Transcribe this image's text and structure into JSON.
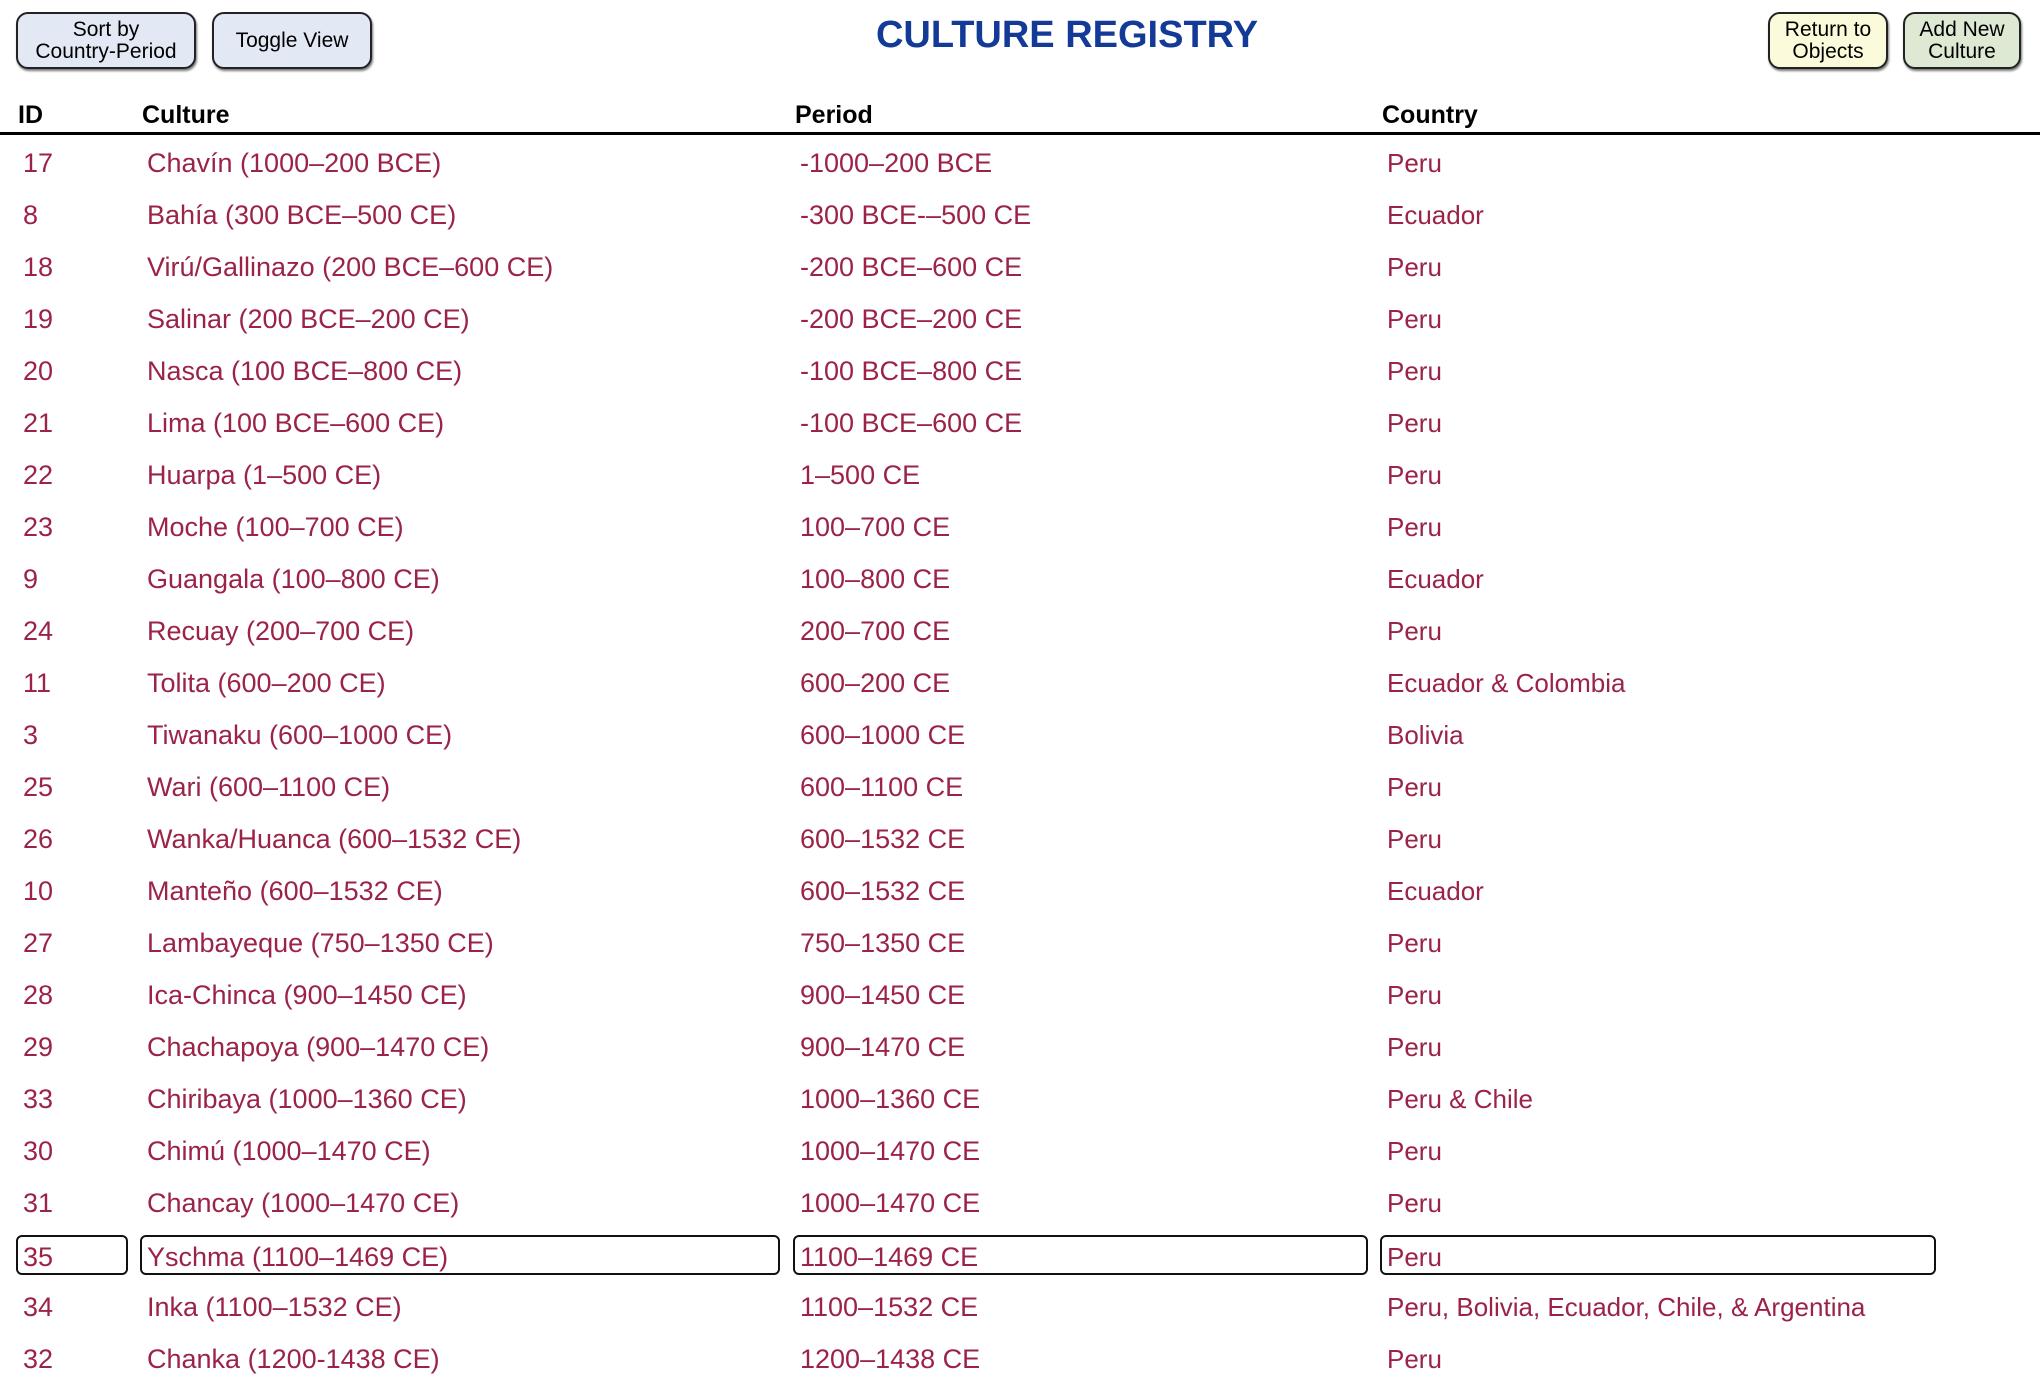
{
  "toolbar": {
    "sort": "Sort by\nCountry-Period",
    "toggle": "Toggle View",
    "return": "Return to\nObjects",
    "add": "Add New\nCulture"
  },
  "title": "CULTURE REGISTRY",
  "columns": {
    "id": "ID",
    "culture": "Culture",
    "period": "Period",
    "country": "Country"
  },
  "colors": {
    "text": "#9b2348",
    "title": "#123a96"
  },
  "selected_id": "35",
  "rows": [
    {
      "id": "17",
      "culture": "Chavín (1000–200 BCE)",
      "period": "-1000–200 BCE",
      "country": "Peru"
    },
    {
      "id": "8",
      "culture": "Bahía (300 BCE–500 CE)",
      "period": "-300 BCE-–500 CE",
      "country": "Ecuador"
    },
    {
      "id": "18",
      "culture": "Virú/Gallinazo (200 BCE–600 CE)",
      "period": "-200 BCE–600 CE",
      "country": "Peru"
    },
    {
      "id": "19",
      "culture": "Salinar (200 BCE–200 CE)",
      "period": "-200 BCE–200 CE",
      "country": "Peru"
    },
    {
      "id": "20",
      "culture": "Nasca (100 BCE–800 CE)",
      "period": "-100 BCE–800 CE",
      "country": "Peru"
    },
    {
      "id": "21",
      "culture": "Lima (100 BCE–600 CE)",
      "period": "-100 BCE–600 CE",
      "country": "Peru"
    },
    {
      "id": "22",
      "culture": "Huarpa (1–500 CE)",
      "period": "1–500 CE",
      "country": "Peru"
    },
    {
      "id": "23",
      "culture": "Moche (100–700 CE)",
      "period": "100–700 CE",
      "country": "Peru"
    },
    {
      "id": "9",
      "culture": "Guangala (100–800 CE)",
      "period": "100–800 CE",
      "country": "Ecuador"
    },
    {
      "id": "24",
      "culture": "Recuay (200–700 CE)",
      "period": "200–700 CE",
      "country": "Peru"
    },
    {
      "id": "11",
      "culture": "Tolita (600–200 CE)",
      "period": "600–200 CE",
      "country": "Ecuador & Colombia"
    },
    {
      "id": "3",
      "culture": "Tiwanaku (600–1000 CE)",
      "period": "600–1000 CE",
      "country": "Bolivia"
    },
    {
      "id": "25",
      "culture": "Wari (600–1100 CE)",
      "period": "600–1100 CE",
      "country": "Peru"
    },
    {
      "id": "26",
      "culture": "Wanka/Huanca (600–1532 CE)",
      "period": "600–1532 CE",
      "country": "Peru"
    },
    {
      "id": "10",
      "culture": "Manteño (600–1532 CE)",
      "period": "600–1532 CE",
      "country": "Ecuador"
    },
    {
      "id": "27",
      "culture": "Lambayeque (750–1350 CE)",
      "period": "750–1350 CE",
      "country": "Peru"
    },
    {
      "id": "28",
      "culture": "Ica-Chinca (900–1450 CE)",
      "period": "900–1450 CE",
      "country": "Peru"
    },
    {
      "id": "29",
      "culture": "Chachapoya (900–1470 CE)",
      "period": "900–1470 CE",
      "country": "Peru"
    },
    {
      "id": "33",
      "culture": "Chiribaya (1000–1360 CE)",
      "period": "1000–1360 CE",
      "country": "Peru & Chile"
    },
    {
      "id": "30",
      "culture": "Chimú (1000–1470 CE)",
      "period": "1000–1470 CE",
      "country": "Peru"
    },
    {
      "id": "31",
      "culture": "Chancay (1000–1470 CE)",
      "period": "1000–1470 CE",
      "country": "Peru"
    },
    {
      "id": "35",
      "culture": "Yschma (1100–1469 CE)",
      "period": "1100–1469 CE",
      "country": "Peru"
    },
    {
      "id": "34",
      "culture": "Inka (1100–1532 CE)",
      "period": "1100–1532 CE",
      "country": "Peru, Bolivia, Ecuador, Chile, & Argentina"
    },
    {
      "id": "32",
      "culture": "Chanka (1200-1438 CE)",
      "period": "1200–1438 CE",
      "country": "Peru"
    }
  ]
}
